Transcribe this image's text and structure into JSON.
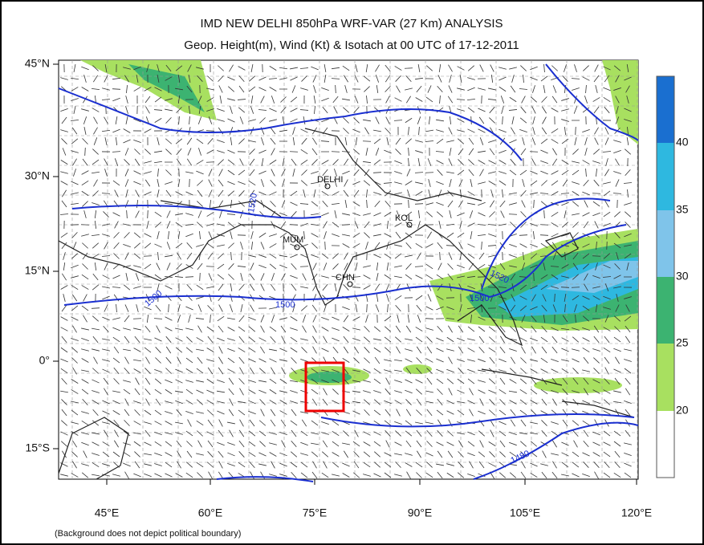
{
  "title": "IMD NEW DELHI 850hPa WRF-VAR (27 Km) ANALYSIS",
  "subtitle": "Geop. Height(m), Wind (Kt) & Isotach  at 00 UTC of 17-12-2011",
  "lat_labels": [
    "45°N",
    "30°N",
    "15°N",
    "0°",
    "15°S"
  ],
  "lon_labels": [
    "45°E",
    "60°E",
    "75°E",
    "90°E",
    "105°E",
    "120°E"
  ],
  "colorbar_ticks": [
    20,
    25,
    30,
    35,
    40
  ],
  "places": [
    "DELHI",
    "KOL",
    "MUM",
    "CHN"
  ],
  "contour_labels": [
    "1520",
    "1500",
    "1500",
    "1520",
    "1500",
    "1480"
  ],
  "footnote": "(Background does not depict political boundary)"
}
